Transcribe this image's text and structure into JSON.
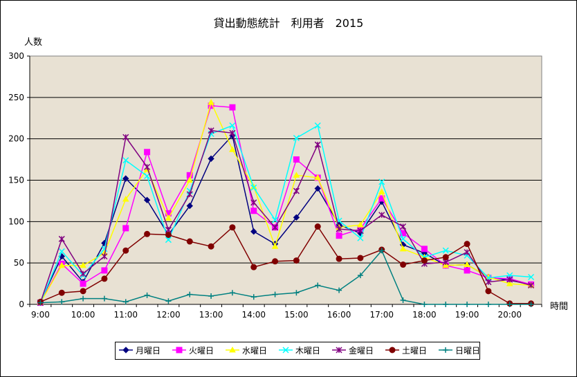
{
  "chart_data": {
    "type": "line",
    "title": "貸出動態統計　利用者　2015",
    "ylabel": "人数",
    "xlabel": "時間",
    "ylim": [
      0,
      300
    ],
    "yticks": [
      0,
      50,
      100,
      150,
      200,
      250,
      300
    ],
    "x_tick_labels": [
      "9:00",
      "10:00",
      "11:00",
      "12:00",
      "13:00",
      "14:00",
      "15:00",
      "16:00",
      "17:00",
      "18:00",
      "19:00",
      "20:00"
    ],
    "x": [
      "9:00",
      "9:30",
      "10:00",
      "10:30",
      "11:00",
      "11:30",
      "12:00",
      "12:30",
      "13:00",
      "13:30",
      "14:00",
      "14:30",
      "15:00",
      "15:30",
      "16:00",
      "16:30",
      "17:00",
      "17:30",
      "18:00",
      "18:30",
      "19:00",
      "19:30",
      "20:00",
      "20:30"
    ],
    "plot_background": "#e8e1d3",
    "grid": true,
    "legend_position": "bottom",
    "series": [
      {
        "name": "月曜日",
        "color": "#000080",
        "marker": "diamond",
        "values": [
          3,
          58,
          27,
          74,
          152,
          126,
          84,
          119,
          176,
          204,
          88,
          73,
          105,
          140,
          96,
          86,
          124,
          72,
          62,
          47,
          48,
          33,
          29,
          24
        ]
      },
      {
        "name": "火曜日",
        "color": "#ff00ff",
        "marker": "square",
        "values": [
          2,
          49,
          25,
          41,
          92,
          184,
          110,
          156,
          240,
          238,
          113,
          93,
          175,
          153,
          83,
          91,
          128,
          86,
          67,
          47,
          41,
          32,
          31,
          24
        ]
      },
      {
        "name": "水曜日",
        "color": "#ffff00",
        "marker": "triangle",
        "values": [
          2,
          47,
          47,
          62,
          127,
          163,
          104,
          150,
          244,
          187,
          142,
          70,
          156,
          153,
          93,
          96,
          136,
          67,
          57,
          47,
          48,
          33,
          25,
          23
        ]
      },
      {
        "name": "木曜日",
        "color": "#00ffff",
        "marker": "x",
        "values": [
          2,
          64,
          35,
          67,
          174,
          155,
          78,
          137,
          206,
          216,
          141,
          102,
          201,
          216,
          101,
          80,
          148,
          79,
          57,
          65,
          59,
          32,
          35,
          33
        ]
      },
      {
        "name": "金曜日",
        "color": "#800080",
        "marker": "star",
        "values": [
          2,
          79,
          37,
          58,
          202,
          166,
          90,
          133,
          210,
          207,
          123,
          93,
          137,
          193,
          91,
          89,
          108,
          94,
          49,
          51,
          63,
          27,
          30,
          23
        ]
      },
      {
        "name": "土曜日",
        "color": "#800000",
        "marker": "circle",
        "values": [
          3,
          14,
          16,
          31,
          65,
          85,
          84,
          76,
          70,
          93,
          45,
          52,
          53,
          94,
          55,
          56,
          66,
          48,
          53,
          57,
          73,
          16,
          1,
          1
        ]
      },
      {
        "name": "日曜日",
        "color": "#008080",
        "marker": "plus",
        "values": [
          2,
          3,
          7,
          7,
          3,
          11,
          4,
          12,
          10,
          14,
          9,
          12,
          14,
          23,
          17,
          35,
          65,
          5,
          0,
          0,
          0,
          0,
          0,
          0
        ]
      }
    ]
  }
}
